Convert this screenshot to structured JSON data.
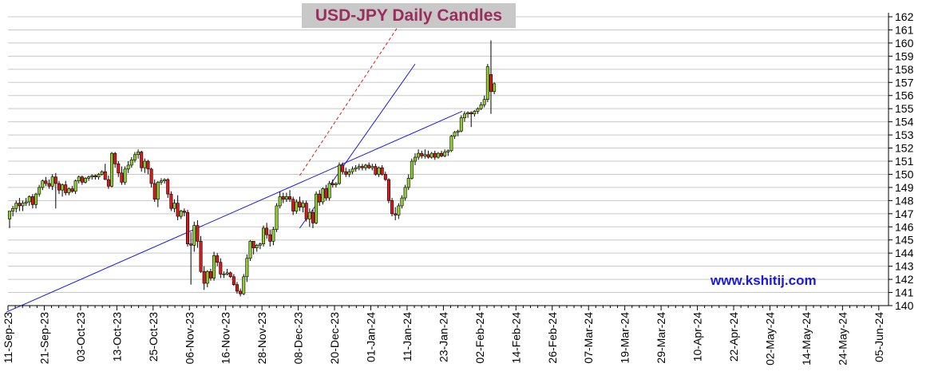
{
  "chart_data": {
    "type": "candlestick",
    "title": "USD-JPY Daily Candles",
    "watermark": "www.kshitij.com",
    "ylim": [
      140,
      162
    ],
    "y_ticks": [
      140,
      141,
      142,
      143,
      144,
      145,
      146,
      147,
      148,
      149,
      150,
      151,
      152,
      153,
      154,
      155,
      156,
      157,
      158,
      159,
      160,
      161,
      162
    ],
    "grid": true,
    "x_date_labels": [
      "11-Sep-23",
      "21-Sep-23",
      "03-Oct-23",
      "13-Oct-23",
      "25-Oct-23",
      "06-Nov-23",
      "16-Nov-23",
      "28-Nov-23",
      "08-Dec-23",
      "20-Dec-23",
      "01-Jan-24",
      "11-Jan-24",
      "23-Jan-24",
      "02-Feb-24",
      "14-Feb-24",
      "26-Feb-24",
      "07-Mar-24",
      "19-Mar-24",
      "29-Mar-24",
      "10-Apr-24",
      "22-Apr-24",
      "02-May-24",
      "14-May-24",
      "24-May-24",
      "05-Jun-24"
    ],
    "colors": {
      "up": "#8ecf2e",
      "down": "#e01818",
      "trendline": "#1a1adb",
      "channel": "#e01818",
      "grid": "#c8c8c8"
    },
    "candles": [
      {
        "o": 146.6,
        "h": 147.2,
        "l": 145.9,
        "c": 147.2
      },
      {
        "o": 147.2,
        "h": 147.6,
        "l": 146.8,
        "c": 147.4
      },
      {
        "o": 147.4,
        "h": 148.0,
        "l": 147.1,
        "c": 147.8
      },
      {
        "o": 147.8,
        "h": 148.2,
        "l": 147.2,
        "c": 147.6
      },
      {
        "o": 147.6,
        "h": 148.0,
        "l": 147.2,
        "c": 147.8
      },
      {
        "o": 147.8,
        "h": 148.2,
        "l": 147.6,
        "c": 147.9
      },
      {
        "o": 147.9,
        "h": 148.4,
        "l": 147.6,
        "c": 148.3
      },
      {
        "o": 148.3,
        "h": 148.5,
        "l": 147.4,
        "c": 147.7
      },
      {
        "o": 147.7,
        "h": 148.6,
        "l": 147.4,
        "c": 148.5
      },
      {
        "o": 148.5,
        "h": 149.2,
        "l": 148.3,
        "c": 149.0
      },
      {
        "o": 149.0,
        "h": 149.6,
        "l": 148.8,
        "c": 149.5
      },
      {
        "o": 149.5,
        "h": 149.8,
        "l": 149.1,
        "c": 149.3
      },
      {
        "o": 149.3,
        "h": 149.6,
        "l": 148.9,
        "c": 149.1
      },
      {
        "o": 149.1,
        "h": 150.0,
        "l": 148.8,
        "c": 149.8
      },
      {
        "o": 149.8,
        "h": 150.1,
        "l": 147.4,
        "c": 149.3
      },
      {
        "o": 149.3,
        "h": 149.5,
        "l": 148.5,
        "c": 148.8
      },
      {
        "o": 148.8,
        "h": 149.3,
        "l": 148.3,
        "c": 149.2
      },
      {
        "o": 149.2,
        "h": 149.5,
        "l": 148.4,
        "c": 148.6
      },
      {
        "o": 148.6,
        "h": 149.0,
        "l": 148.4,
        "c": 148.9
      },
      {
        "o": 148.9,
        "h": 149.1,
        "l": 148.6,
        "c": 148.7
      },
      {
        "o": 148.7,
        "h": 149.6,
        "l": 148.5,
        "c": 149.5
      },
      {
        "o": 149.5,
        "h": 149.9,
        "l": 149.3,
        "c": 149.8
      },
      {
        "o": 149.8,
        "h": 149.9,
        "l": 149.2,
        "c": 149.4
      },
      {
        "o": 149.4,
        "h": 149.8,
        "l": 149.3,
        "c": 149.7
      },
      {
        "o": 149.7,
        "h": 149.9,
        "l": 149.5,
        "c": 149.8
      },
      {
        "o": 149.8,
        "h": 150.0,
        "l": 149.6,
        "c": 149.9
      },
      {
        "o": 149.9,
        "h": 150.0,
        "l": 149.6,
        "c": 149.8
      },
      {
        "o": 149.8,
        "h": 150.1,
        "l": 149.6,
        "c": 150.0
      },
      {
        "o": 150.0,
        "h": 150.3,
        "l": 149.9,
        "c": 150.2
      },
      {
        "o": 150.2,
        "h": 150.8,
        "l": 149.6,
        "c": 149.6
      },
      {
        "o": 149.6,
        "h": 149.9,
        "l": 148.9,
        "c": 149.1
      },
      {
        "o": 149.1,
        "h": 151.7,
        "l": 149.0,
        "c": 151.6
      },
      {
        "o": 151.6,
        "h": 151.7,
        "l": 150.5,
        "c": 150.8
      },
      {
        "o": 150.8,
        "h": 151.0,
        "l": 149.8,
        "c": 150.1
      },
      {
        "o": 150.1,
        "h": 150.6,
        "l": 149.2,
        "c": 149.4
      },
      {
        "o": 149.4,
        "h": 150.6,
        "l": 149.2,
        "c": 150.4
      },
      {
        "o": 150.4,
        "h": 151.0,
        "l": 150.1,
        "c": 150.7
      },
      {
        "o": 150.7,
        "h": 151.3,
        "l": 150.5,
        "c": 151.1
      },
      {
        "o": 151.1,
        "h": 151.7,
        "l": 150.9,
        "c": 151.5
      },
      {
        "o": 151.5,
        "h": 151.9,
        "l": 151.2,
        "c": 151.7
      },
      {
        "o": 151.7,
        "h": 151.8,
        "l": 150.2,
        "c": 150.5
      },
      {
        "o": 150.5,
        "h": 151.2,
        "l": 150.1,
        "c": 151.0
      },
      {
        "o": 151.0,
        "h": 151.1,
        "l": 150.0,
        "c": 150.4
      },
      {
        "o": 150.4,
        "h": 150.5,
        "l": 149.0,
        "c": 149.3
      },
      {
        "o": 149.3,
        "h": 149.6,
        "l": 147.9,
        "c": 148.1
      },
      {
        "o": 148.1,
        "h": 149.5,
        "l": 147.5,
        "c": 149.4
      },
      {
        "o": 149.4,
        "h": 149.7,
        "l": 149.2,
        "c": 149.5
      },
      {
        "o": 149.5,
        "h": 149.7,
        "l": 149.3,
        "c": 149.6
      },
      {
        "o": 149.6,
        "h": 149.7,
        "l": 148.2,
        "c": 148.5
      },
      {
        "o": 148.5,
        "h": 148.7,
        "l": 147.2,
        "c": 147.4
      },
      {
        "o": 147.4,
        "h": 148.1,
        "l": 147.1,
        "c": 147.8
      },
      {
        "o": 147.8,
        "h": 148.4,
        "l": 146.5,
        "c": 146.8
      },
      {
        "o": 146.8,
        "h": 147.3,
        "l": 146.6,
        "c": 147.2
      },
      {
        "o": 147.2,
        "h": 147.4,
        "l": 146.8,
        "c": 147.1
      },
      {
        "o": 147.1,
        "h": 147.3,
        "l": 144.5,
        "c": 144.7
      },
      {
        "o": 144.7,
        "h": 145.6,
        "l": 141.6,
        "c": 144.6
      },
      {
        "o": 144.6,
        "h": 146.4,
        "l": 144.1,
        "c": 146.1
      },
      {
        "o": 146.1,
        "h": 146.5,
        "l": 144.4,
        "c": 144.9
      },
      {
        "o": 144.9,
        "h": 145.3,
        "l": 142.5,
        "c": 142.6
      },
      {
        "o": 142.6,
        "h": 143.0,
        "l": 141.2,
        "c": 141.7
      },
      {
        "o": 141.7,
        "h": 142.7,
        "l": 141.4,
        "c": 142.6
      },
      {
        "o": 142.6,
        "h": 142.8,
        "l": 141.9,
        "c": 142.1
      },
      {
        "o": 142.1,
        "h": 144.1,
        "l": 141.9,
        "c": 143.8
      },
      {
        "o": 143.8,
        "h": 144.0,
        "l": 143.0,
        "c": 143.3
      },
      {
        "o": 143.3,
        "h": 143.6,
        "l": 142.1,
        "c": 142.4
      },
      {
        "o": 142.4,
        "h": 142.6,
        "l": 142.1,
        "c": 142.4
      },
      {
        "o": 142.4,
        "h": 142.8,
        "l": 142.3,
        "c": 142.5
      },
      {
        "o": 142.5,
        "h": 142.6,
        "l": 142.1,
        "c": 142.2
      },
      {
        "o": 142.2,
        "h": 142.4,
        "l": 141.5,
        "c": 141.6
      },
      {
        "o": 141.6,
        "h": 141.8,
        "l": 140.9,
        "c": 141.1
      },
      {
        "o": 141.1,
        "h": 141.3,
        "l": 140.7,
        "c": 140.9
      },
      {
        "o": 140.9,
        "h": 142.4,
        "l": 140.8,
        "c": 142.2
      },
      {
        "o": 142.2,
        "h": 143.9,
        "l": 141.8,
        "c": 143.6
      },
      {
        "o": 143.6,
        "h": 145.0,
        "l": 143.4,
        "c": 144.9
      },
      {
        "o": 144.9,
        "h": 144.9,
        "l": 143.9,
        "c": 144.4
      },
      {
        "o": 144.4,
        "h": 144.7,
        "l": 144.1,
        "c": 144.6
      },
      {
        "o": 144.6,
        "h": 144.8,
        "l": 144.3,
        "c": 144.7
      },
      {
        "o": 144.7,
        "h": 146.1,
        "l": 144.5,
        "c": 145.9
      },
      {
        "o": 145.9,
        "h": 146.3,
        "l": 145.1,
        "c": 145.4
      },
      {
        "o": 145.4,
        "h": 145.8,
        "l": 144.5,
        "c": 144.9
      },
      {
        "o": 144.9,
        "h": 146.0,
        "l": 144.6,
        "c": 145.8
      },
      {
        "o": 145.8,
        "h": 147.8,
        "l": 145.6,
        "c": 147.6
      },
      {
        "o": 147.6,
        "h": 148.7,
        "l": 147.4,
        "c": 148.3
      },
      {
        "o": 148.3,
        "h": 148.6,
        "l": 147.8,
        "c": 148.1
      },
      {
        "o": 148.1,
        "h": 148.6,
        "l": 147.9,
        "c": 148.3
      },
      {
        "o": 148.3,
        "h": 148.8,
        "l": 147.9,
        "c": 148.1
      },
      {
        "o": 148.1,
        "h": 148.3,
        "l": 146.9,
        "c": 147.2
      },
      {
        "o": 147.2,
        "h": 148.1,
        "l": 147.0,
        "c": 147.9
      },
      {
        "o": 147.9,
        "h": 148.3,
        "l": 147.2,
        "c": 147.5
      },
      {
        "o": 147.5,
        "h": 148.0,
        "l": 147.1,
        "c": 147.8
      },
      {
        "o": 147.8,
        "h": 148.0,
        "l": 146.4,
        "c": 146.6
      },
      {
        "o": 146.6,
        "h": 147.4,
        "l": 146.0,
        "c": 147.1
      },
      {
        "o": 147.1,
        "h": 147.3,
        "l": 145.9,
        "c": 146.3
      },
      {
        "o": 146.3,
        "h": 148.7,
        "l": 146.2,
        "c": 148.5
      },
      {
        "o": 148.5,
        "h": 148.8,
        "l": 147.6,
        "c": 147.9
      },
      {
        "o": 147.9,
        "h": 149.0,
        "l": 147.7,
        "c": 148.9
      },
      {
        "o": 148.9,
        "h": 149.2,
        "l": 148.0,
        "c": 148.2
      },
      {
        "o": 148.2,
        "h": 149.5,
        "l": 148.0,
        "c": 149.3
      },
      {
        "o": 149.3,
        "h": 149.6,
        "l": 149.0,
        "c": 149.2
      },
      {
        "o": 149.2,
        "h": 149.4,
        "l": 149.0,
        "c": 149.3
      },
      {
        "o": 149.3,
        "h": 150.9,
        "l": 149.2,
        "c": 150.7
      },
      {
        "o": 150.7,
        "h": 150.9,
        "l": 150.0,
        "c": 150.2
      },
      {
        "o": 150.2,
        "h": 150.5,
        "l": 149.8,
        "c": 150.0
      },
      {
        "o": 150.0,
        "h": 150.4,
        "l": 149.8,
        "c": 150.2
      },
      {
        "o": 150.2,
        "h": 150.6,
        "l": 150.0,
        "c": 150.4
      },
      {
        "o": 150.4,
        "h": 150.7,
        "l": 150.2,
        "c": 150.5
      },
      {
        "o": 150.5,
        "h": 150.8,
        "l": 150.3,
        "c": 150.6
      },
      {
        "o": 150.6,
        "h": 150.8,
        "l": 150.3,
        "c": 150.5
      },
      {
        "o": 150.5,
        "h": 150.8,
        "l": 150.3,
        "c": 150.7
      },
      {
        "o": 150.7,
        "h": 150.9,
        "l": 150.4,
        "c": 150.5
      },
      {
        "o": 150.5,
        "h": 150.8,
        "l": 150.3,
        "c": 150.6
      },
      {
        "o": 150.6,
        "h": 150.8,
        "l": 149.9,
        "c": 150.0
      },
      {
        "o": 150.0,
        "h": 150.6,
        "l": 149.8,
        "c": 150.5
      },
      {
        "o": 150.5,
        "h": 150.7,
        "l": 149.9,
        "c": 150.0
      },
      {
        "o": 150.0,
        "h": 150.2,
        "l": 149.5,
        "c": 149.6
      },
      {
        "o": 149.6,
        "h": 149.7,
        "l": 147.8,
        "c": 148.0
      },
      {
        "o": 148.0,
        "h": 148.2,
        "l": 146.8,
        "c": 147.0
      },
      {
        "o": 147.0,
        "h": 147.5,
        "l": 146.5,
        "c": 146.9
      },
      {
        "o": 146.9,
        "h": 147.8,
        "l": 146.6,
        "c": 147.6
      },
      {
        "o": 147.6,
        "h": 148.4,
        "l": 147.4,
        "c": 148.2
      },
      {
        "o": 148.2,
        "h": 149.2,
        "l": 148.0,
        "c": 149.0
      },
      {
        "o": 149.0,
        "h": 150.0,
        "l": 148.8,
        "c": 149.7
      },
      {
        "o": 149.7,
        "h": 151.2,
        "l": 149.6,
        "c": 151.0
      },
      {
        "o": 151.0,
        "h": 151.6,
        "l": 150.7,
        "c": 151.3
      },
      {
        "o": 151.3,
        "h": 151.9,
        "l": 151.1,
        "c": 151.6
      },
      {
        "o": 151.6,
        "h": 151.8,
        "l": 151.2,
        "c": 151.4
      },
      {
        "o": 151.4,
        "h": 151.9,
        "l": 151.2,
        "c": 151.5
      },
      {
        "o": 151.5,
        "h": 151.8,
        "l": 151.2,
        "c": 151.3
      },
      {
        "o": 151.3,
        "h": 151.7,
        "l": 151.2,
        "c": 151.6
      },
      {
        "o": 151.6,
        "h": 151.8,
        "l": 151.1,
        "c": 151.3
      },
      {
        "o": 151.3,
        "h": 151.7,
        "l": 151.2,
        "c": 151.6
      },
      {
        "o": 151.6,
        "h": 151.8,
        "l": 151.3,
        "c": 151.4
      },
      {
        "o": 151.4,
        "h": 151.9,
        "l": 151.3,
        "c": 151.7
      },
      {
        "o": 151.7,
        "h": 151.9,
        "l": 151.4,
        "c": 151.8
      },
      {
        "o": 151.8,
        "h": 153.0,
        "l": 151.7,
        "c": 152.9
      },
      {
        "o": 152.9,
        "h": 153.3,
        "l": 152.7,
        "c": 153.2
      },
      {
        "o": 153.2,
        "h": 153.4,
        "l": 152.9,
        "c": 153.3
      },
      {
        "o": 153.3,
        "h": 154.5,
        "l": 153.2,
        "c": 154.3
      },
      {
        "o": 154.3,
        "h": 154.8,
        "l": 154.0,
        "c": 154.6
      },
      {
        "o": 154.6,
        "h": 154.8,
        "l": 154.3,
        "c": 154.7
      },
      {
        "o": 154.7,
        "h": 154.8,
        "l": 153.6,
        "c": 154.6
      },
      {
        "o": 154.6,
        "h": 154.9,
        "l": 154.4,
        "c": 154.8
      },
      {
        "o": 154.8,
        "h": 155.1,
        "l": 154.6,
        "c": 155.0
      },
      {
        "o": 155.0,
        "h": 155.5,
        "l": 154.9,
        "c": 155.3
      },
      {
        "o": 155.3,
        "h": 156.0,
        "l": 155.1,
        "c": 155.7
      },
      {
        "o": 155.7,
        "h": 158.4,
        "l": 155.5,
        "c": 158.2
      },
      {
        "o": 157.6,
        "h": 160.2,
        "l": 154.6,
        "c": 156.3
      },
      {
        "o": 156.3,
        "h": 157.0,
        "l": 156.1,
        "c": 156.9
      }
    ],
    "trendlines": [
      {
        "style": "solid",
        "color": "#1a1adb",
        "from": [
          -1.0,
          139.5
        ],
        "to": [
          137.3,
          154.8
        ]
      },
      {
        "style": "solid",
        "color": "#1a1adb",
        "from": [
          88.0,
          145.9
        ],
        "to": [
          123.0,
          158.4
        ]
      },
      {
        "style": "dashed",
        "color": "#e01818",
        "from": [
          88.0,
          149.9
        ],
        "to": [
          120.3,
          162.2
        ]
      }
    ]
  }
}
